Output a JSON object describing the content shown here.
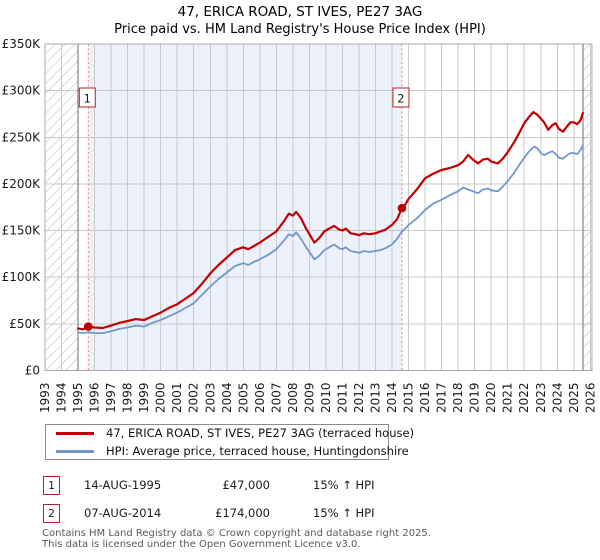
{
  "title": "47, ERICA ROAD, ST IVES, PE27 3AG",
  "subtitle": "Price paid vs. HM Land Registry's House Price Index (HPI)",
  "legend": {
    "property_label": "47, ERICA ROAD, ST IVES, PE27 3AG (terraced house)",
    "hpi_label": "HPI: Average price, terraced house, Huntingdonshire"
  },
  "sales": [
    {
      "num": "1",
      "date": "14-AUG-1995",
      "price": "£47,000",
      "hpi_diff": "15% ↑ HPI"
    },
    {
      "num": "2",
      "date": "07-AUG-2014",
      "price": "£174,000",
      "hpi_diff": "15% ↑ HPI"
    }
  ],
  "footer": {
    "line1": "Contains HM Land Registry data © Crown copyright and database right 2025.",
    "line2": "This data is licensed under the Open Government Licence v3.0."
  },
  "colors": {
    "property": "#c00000",
    "hpi": "#7197c9",
    "shade": "#edf1fb",
    "grid": "#c9c9c9",
    "dashed": "#f08080",
    "hatch": "#b3b7bf",
    "border": "#ababab",
    "edge": "#6e6e6e",
    "marker_box": "#bb2222",
    "axis_text": "#1a1a1a"
  },
  "chart_data": {
    "type": "line",
    "title": "Price paid vs. HM Land Registry's House Price Index (HPI)",
    "xlabel": "",
    "ylabel": "",
    "x_axis": {
      "range": [
        1993,
        2026.1
      ],
      "tick_years": [
        1993,
        1994,
        1995,
        1996,
        1997,
        1998,
        1999,
        2000,
        2001,
        2002,
        2003,
        2004,
        2005,
        2006,
        2007,
        2008,
        2009,
        2010,
        2011,
        2012,
        2013,
        2014,
        2015,
        2016,
        2017,
        2018,
        2019,
        2020,
        2021,
        2022,
        2023,
        2024,
        2025,
        2026
      ]
    },
    "y_axis": {
      "range_k": [
        0,
        350
      ],
      "ticks": [
        {
          "v": 0,
          "label": "£0"
        },
        {
          "v": 50,
          "label": "£50K"
        },
        {
          "v": 100,
          "label": "£100K"
        },
        {
          "v": 150,
          "label": "£150K"
        },
        {
          "v": 200,
          "label": "£200K"
        },
        {
          "v": 250,
          "label": "£250K"
        },
        {
          "v": 300,
          "label": "£300K"
        },
        {
          "v": 350,
          "label": "£350K"
        }
      ]
    },
    "grid": true,
    "legend_position": "bottom",
    "shaded_period": [
      1995.62,
      2014.6
    ],
    "hatched_regions": [
      [
        1993,
        1995.0
      ],
      [
        2025.55,
        2026.1
      ]
    ],
    "sale_markers": [
      {
        "x": 1995.62,
        "v": 47,
        "label": "1",
        "date": "14-AUG-1995",
        "price_gbp": 47000
      },
      {
        "x": 2014.6,
        "v": 174,
        "label": "2",
        "date": "07-AUG-2014",
        "price_gbp": 174000
      }
    ],
    "series": [
      {
        "name": "HPI: Average price, terraced house, Huntingdonshire",
        "color": "#7197c9",
        "width": 1.8,
        "points": [
          [
            1995.0,
            41
          ],
          [
            1995.3,
            40
          ],
          [
            1995.62,
            41
          ],
          [
            1996.0,
            40
          ],
          [
            1996.5,
            40
          ],
          [
            1997.0,
            42
          ],
          [
            1997.5,
            44.5
          ],
          [
            1998.0,
            46
          ],
          [
            1998.5,
            48
          ],
          [
            1999.0,
            47
          ],
          [
            1999.5,
            51
          ],
          [
            2000.0,
            54
          ],
          [
            2000.5,
            58
          ],
          [
            2001.0,
            62
          ],
          [
            2001.5,
            67
          ],
          [
            2002.0,
            72
          ],
          [
            2002.5,
            81
          ],
          [
            2003.0,
            90
          ],
          [
            2003.5,
            98
          ],
          [
            2004.0,
            105
          ],
          [
            2004.5,
            112
          ],
          [
            2005.0,
            115
          ],
          [
            2005.3,
            113
          ],
          [
            2005.6,
            116
          ],
          [
            2006.0,
            119
          ],
          [
            2006.5,
            124
          ],
          [
            2007.0,
            130
          ],
          [
            2007.5,
            140
          ],
          [
            2007.75,
            146
          ],
          [
            2008.0,
            144
          ],
          [
            2008.2,
            148
          ],
          [
            2008.5,
            141
          ],
          [
            2008.8,
            132
          ],
          [
            2009.0,
            127
          ],
          [
            2009.3,
            119
          ],
          [
            2009.6,
            123
          ],
          [
            2009.9,
            129
          ],
          [
            2010.2,
            132
          ],
          [
            2010.5,
            135
          ],
          [
            2010.8,
            131
          ],
          [
            2011.0,
            130
          ],
          [
            2011.2,
            132
          ],
          [
            2011.5,
            128
          ],
          [
            2011.8,
            127
          ],
          [
            2012.0,
            126
          ],
          [
            2012.3,
            128
          ],
          [
            2012.6,
            127
          ],
          [
            2013.0,
            128
          ],
          [
            2013.3,
            129
          ],
          [
            2013.6,
            131
          ],
          [
            2014.0,
            135
          ],
          [
            2014.3,
            141
          ],
          [
            2014.6,
            149
          ],
          [
            2014.8,
            152
          ],
          [
            2015.0,
            156
          ],
          [
            2015.5,
            163
          ],
          [
            2016.0,
            172
          ],
          [
            2016.5,
            179
          ],
          [
            2017.0,
            183
          ],
          [
            2017.5,
            188
          ],
          [
            2018.0,
            192
          ],
          [
            2018.3,
            196
          ],
          [
            2018.6,
            194
          ],
          [
            2018.9,
            192
          ],
          [
            2019.2,
            190
          ],
          [
            2019.5,
            194
          ],
          [
            2019.8,
            195
          ],
          [
            2020.0,
            193
          ],
          [
            2020.4,
            192
          ],
          [
            2020.7,
            197
          ],
          [
            2021.0,
            203
          ],
          [
            2021.4,
            212
          ],
          [
            2021.8,
            223
          ],
          [
            2022.0,
            228
          ],
          [
            2022.3,
            235
          ],
          [
            2022.6,
            240
          ],
          [
            2022.8,
            238
          ],
          [
            2023.0,
            233
          ],
          [
            2023.2,
            231
          ],
          [
            2023.45,
            233
          ],
          [
            2023.7,
            235
          ],
          [
            2023.9,
            232
          ],
          [
            2024.1,
            228
          ],
          [
            2024.35,
            227
          ],
          [
            2024.6,
            231
          ],
          [
            2024.8,
            233
          ],
          [
            2025.0,
            233
          ],
          [
            2025.2,
            232
          ],
          [
            2025.4,
            236
          ],
          [
            2025.55,
            242
          ]
        ]
      },
      {
        "name": "47, ERICA ROAD, ST IVES, PE27 3AG (terraced house)",
        "color": "#c00000",
        "width": 2.2,
        "points": [
          [
            1995.0,
            45
          ],
          [
            1995.3,
            44
          ],
          [
            1995.62,
            47
          ],
          [
            1996.0,
            46
          ],
          [
            1996.5,
            45.5
          ],
          [
            1997.0,
            48
          ],
          [
            1997.5,
            51
          ],
          [
            1998.0,
            53
          ],
          [
            1998.5,
            55
          ],
          [
            1999.0,
            54
          ],
          [
            1999.5,
            58
          ],
          [
            2000.0,
            62
          ],
          [
            2000.5,
            67
          ],
          [
            2001.0,
            71
          ],
          [
            2001.5,
            77
          ],
          [
            2002.0,
            83
          ],
          [
            2002.5,
            93
          ],
          [
            2003.0,
            104
          ],
          [
            2003.5,
            113
          ],
          [
            2004.0,
            121
          ],
          [
            2004.5,
            129
          ],
          [
            2005.0,
            132
          ],
          [
            2005.3,
            130
          ],
          [
            2005.6,
            133
          ],
          [
            2006.0,
            137
          ],
          [
            2006.5,
            143
          ],
          [
            2007.0,
            149
          ],
          [
            2007.5,
            161
          ],
          [
            2007.75,
            168
          ],
          [
            2008.0,
            166
          ],
          [
            2008.2,
            170
          ],
          [
            2008.5,
            163
          ],
          [
            2008.8,
            152
          ],
          [
            2009.0,
            146
          ],
          [
            2009.3,
            137
          ],
          [
            2009.6,
            142
          ],
          [
            2009.9,
            149
          ],
          [
            2010.2,
            152
          ],
          [
            2010.5,
            155
          ],
          [
            2010.8,
            151
          ],
          [
            2011.0,
            150
          ],
          [
            2011.2,
            152
          ],
          [
            2011.5,
            147
          ],
          [
            2011.8,
            146
          ],
          [
            2012.0,
            145
          ],
          [
            2012.3,
            147
          ],
          [
            2012.6,
            146
          ],
          [
            2013.0,
            147
          ],
          [
            2013.3,
            149
          ],
          [
            2013.6,
            151
          ],
          [
            2014.0,
            156
          ],
          [
            2014.3,
            162
          ],
          [
            2014.6,
            174
          ],
          [
            2014.8,
            178
          ],
          [
            2015.0,
            184
          ],
          [
            2015.5,
            194
          ],
          [
            2016.0,
            206
          ],
          [
            2016.5,
            211
          ],
          [
            2017.0,
            215
          ],
          [
            2017.5,
            217
          ],
          [
            2018.0,
            220
          ],
          [
            2018.3,
            224
          ],
          [
            2018.6,
            231
          ],
          [
            2018.9,
            226
          ],
          [
            2019.2,
            222
          ],
          [
            2019.5,
            226
          ],
          [
            2019.8,
            227
          ],
          [
            2020.0,
            224
          ],
          [
            2020.4,
            222
          ],
          [
            2020.7,
            227
          ],
          [
            2021.0,
            234
          ],
          [
            2021.4,
            245
          ],
          [
            2021.8,
            258
          ],
          [
            2022.0,
            265
          ],
          [
            2022.3,
            272
          ],
          [
            2022.55,
            277
          ],
          [
            2022.8,
            274
          ],
          [
            2023.0,
            270
          ],
          [
            2023.2,
            266
          ],
          [
            2023.45,
            258
          ],
          [
            2023.7,
            263
          ],
          [
            2023.9,
            265
          ],
          [
            2024.1,
            259
          ],
          [
            2024.35,
            256
          ],
          [
            2024.6,
            262
          ],
          [
            2024.8,
            266
          ],
          [
            2025.0,
            266
          ],
          [
            2025.2,
            264
          ],
          [
            2025.4,
            268
          ],
          [
            2025.55,
            276
          ]
        ]
      }
    ]
  }
}
